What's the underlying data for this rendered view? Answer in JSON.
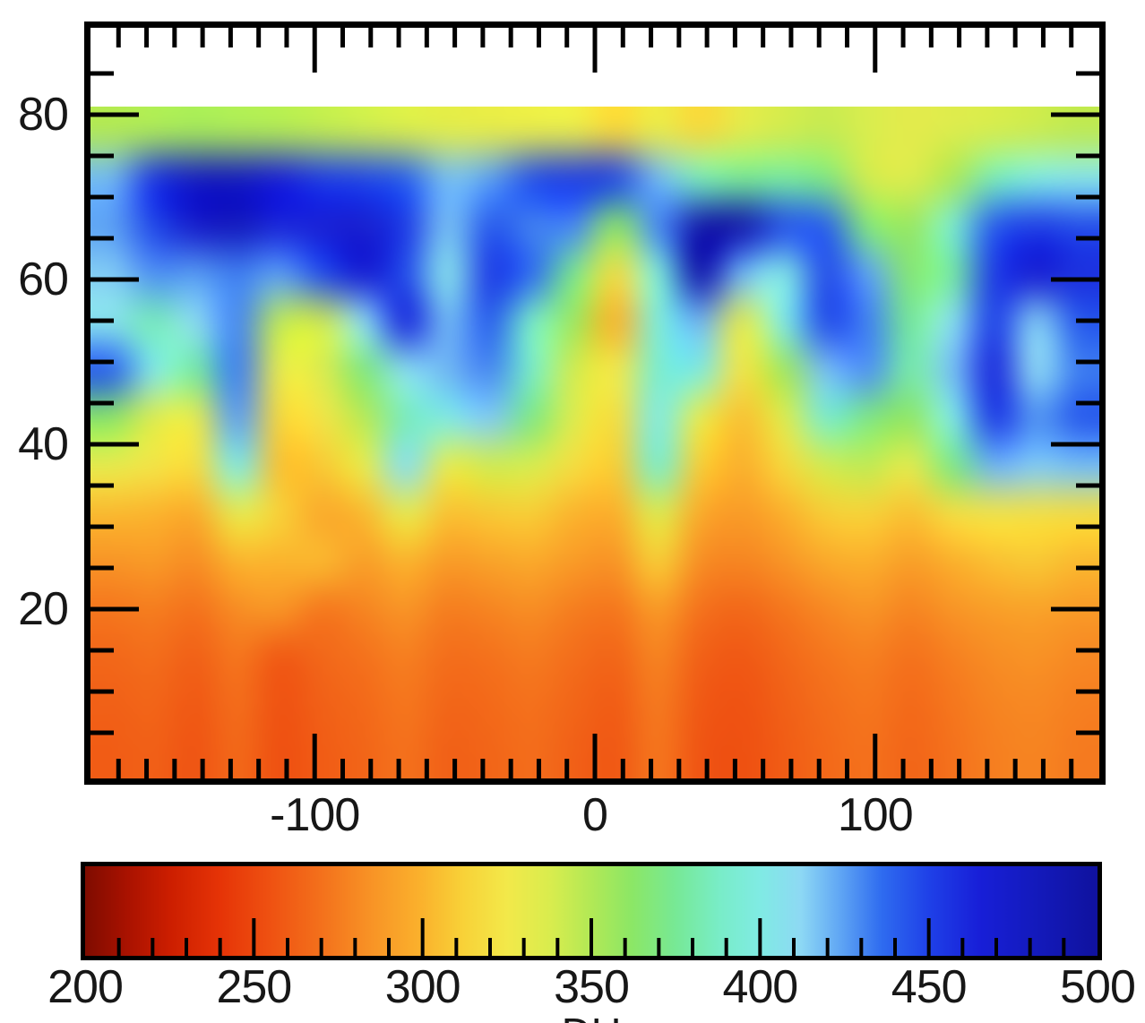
{
  "figure": {
    "background_color": "#ffffff",
    "frame_color": "#000000",
    "tick_color": "#000000",
    "label_color": "#171717"
  },
  "chart_data": {
    "type": "heatmap",
    "title": "",
    "x_axis": {
      "label": "",
      "min": -180,
      "max": 180,
      "minor_tick_step": 10,
      "major_ticks": [
        -100,
        0,
        100
      ],
      "tick_labels": [
        "-100",
        "0",
        "100"
      ]
    },
    "y_axis": {
      "label": "",
      "min": 0,
      "max": 90,
      "minor_tick_step": 5,
      "major_ticks": [
        20,
        40,
        60,
        80
      ],
      "tick_labels": [
        "20",
        "40",
        "60",
        "80"
      ]
    },
    "data_extent": {
      "lon_min": -180,
      "lon_max": 180,
      "lat_min": -1,
      "lat_max": 81
    },
    "grid": {
      "lon_col_centers": [
        -172.5,
        -157.5,
        -142.5,
        -127.5,
        -112.5,
        -97.5,
        -82.5,
        -67.5,
        -52.5,
        -37.5,
        -22.5,
        -7.5,
        7.5,
        22.5,
        37.5,
        52.5,
        67.5,
        82.5,
        97.5,
        112.5,
        127.5,
        142.5,
        157.5,
        172.5
      ],
      "lat_row_centers": [
        78,
        72,
        66,
        60,
        54,
        48,
        42,
        36,
        30,
        24,
        18,
        12,
        6,
        2
      ],
      "values_du": [
        [
          350,
          352,
          354,
          352,
          350,
          346,
          342,
          338,
          334,
          332,
          331,
          330,
          314,
          330,
          316,
          333,
          340,
          344,
          338,
          333,
          336,
          339,
          342,
          346
        ],
        [
          420,
          455,
          478,
          480,
          465,
          452,
          448,
          440,
          418,
          425,
          445,
          452,
          448,
          420,
          385,
          375,
          378,
          370,
          340,
          336,
          352,
          385,
          400,
          405
        ],
        [
          425,
          448,
          472,
          480,
          462,
          466,
          470,
          452,
          418,
          442,
          432,
          430,
          362,
          430,
          492,
          490,
          445,
          440,
          368,
          358,
          392,
          442,
          452,
          446
        ],
        [
          415,
          428,
          426,
          432,
          425,
          445,
          468,
          446,
          406,
          452,
          436,
          372,
          318,
          396,
          490,
          420,
          402,
          446,
          425,
          366,
          378,
          452,
          468,
          458
        ],
        [
          406,
          384,
          410,
          430,
          345,
          340,
          410,
          460,
          420,
          440,
          388,
          356,
          300,
          396,
          420,
          332,
          400,
          446,
          432,
          376,
          408,
          450,
          415,
          442
        ],
        [
          440,
          402,
          378,
          432,
          330,
          336,
          368,
          408,
          420,
          430,
          388,
          340,
          325,
          392,
          398,
          322,
          355,
          418,
          428,
          380,
          418,
          460,
          412,
          432
        ],
        [
          362,
          335,
          330,
          425,
          315,
          322,
          348,
          385,
          400,
          415,
          370,
          335,
          318,
          400,
          330,
          305,
          335,
          390,
          370,
          360,
          400,
          452,
          428,
          442
        ],
        [
          330,
          322,
          318,
          400,
          305,
          308,
          330,
          408,
          330,
          340,
          338,
          318,
          310,
          390,
          310,
          298,
          315,
          340,
          345,
          332,
          370,
          420,
          415,
          418
        ],
        [
          302,
          300,
          296,
          330,
          312,
          295,
          302,
          330,
          305,
          308,
          310,
          300,
          298,
          335,
          295,
          288,
          298,
          310,
          312,
          305,
          318,
          322,
          320,
          318
        ],
        [
          285,
          288,
          282,
          300,
          300,
          302,
          290,
          300,
          288,
          292,
          295,
          288,
          285,
          310,
          282,
          278,
          285,
          295,
          298,
          290,
          298,
          305,
          308,
          302
        ],
        [
          272,
          275,
          270,
          282,
          285,
          272,
          278,
          285,
          275,
          278,
          282,
          275,
          272,
          288,
          270,
          265,
          272,
          280,
          285,
          278,
          285,
          290,
          292,
          288
        ],
        [
          265,
          268,
          262,
          272,
          258,
          265,
          270,
          276,
          268,
          270,
          274,
          268,
          264,
          278,
          262,
          258,
          265,
          272,
          276,
          270,
          276,
          282,
          284,
          280
        ],
        [
          262,
          264,
          258,
          268,
          255,
          262,
          266,
          272,
          264,
          266,
          270,
          264,
          260,
          274,
          258,
          255,
          262,
          268,
          272,
          266,
          272,
          278,
          280,
          276
        ],
        [
          260,
          262,
          256,
          266,
          254,
          260,
          264,
          270,
          262,
          264,
          268,
          262,
          258,
          272,
          256,
          254,
          260,
          266,
          270,
          264,
          270,
          276,
          278,
          274
        ]
      ]
    },
    "colorbar": {
      "min": 200,
      "max": 500,
      "minor_tick_step": 10,
      "major_tick_step": 50,
      "major_ticks": [
        250,
        300,
        350,
        400,
        450
      ],
      "tick_labels": [
        "200",
        "250",
        "300",
        "350",
        "400",
        "450",
        "500"
      ],
      "tick_label_values": [
        200,
        250,
        300,
        350,
        400,
        450,
        500
      ],
      "unit_label": "DU",
      "colormap_stops": [
        {
          "value": 200,
          "color": "#7f0c00"
        },
        {
          "value": 212,
          "color": "#a81200"
        },
        {
          "value": 225,
          "color": "#cc1e00"
        },
        {
          "value": 240,
          "color": "#e63407"
        },
        {
          "value": 255,
          "color": "#ef5212"
        },
        {
          "value": 270,
          "color": "#f4711c"
        },
        {
          "value": 285,
          "color": "#f89426"
        },
        {
          "value": 300,
          "color": "#fbb32d"
        },
        {
          "value": 312,
          "color": "#f8d238"
        },
        {
          "value": 325,
          "color": "#f3e94a"
        },
        {
          "value": 338,
          "color": "#d9ed4e"
        },
        {
          "value": 350,
          "color": "#b2e956"
        },
        {
          "value": 362,
          "color": "#8ce766"
        },
        {
          "value": 375,
          "color": "#77e996"
        },
        {
          "value": 388,
          "color": "#79edc8"
        },
        {
          "value": 400,
          "color": "#80ebe4"
        },
        {
          "value": 412,
          "color": "#8ed9f4"
        },
        {
          "value": 424,
          "color": "#5fa5f4"
        },
        {
          "value": 436,
          "color": "#2f6cf0"
        },
        {
          "value": 450,
          "color": "#1f41e8"
        },
        {
          "value": 465,
          "color": "#181fd8"
        },
        {
          "value": 480,
          "color": "#141bbf"
        },
        {
          "value": 500,
          "color": "#10129e"
        }
      ]
    }
  }
}
